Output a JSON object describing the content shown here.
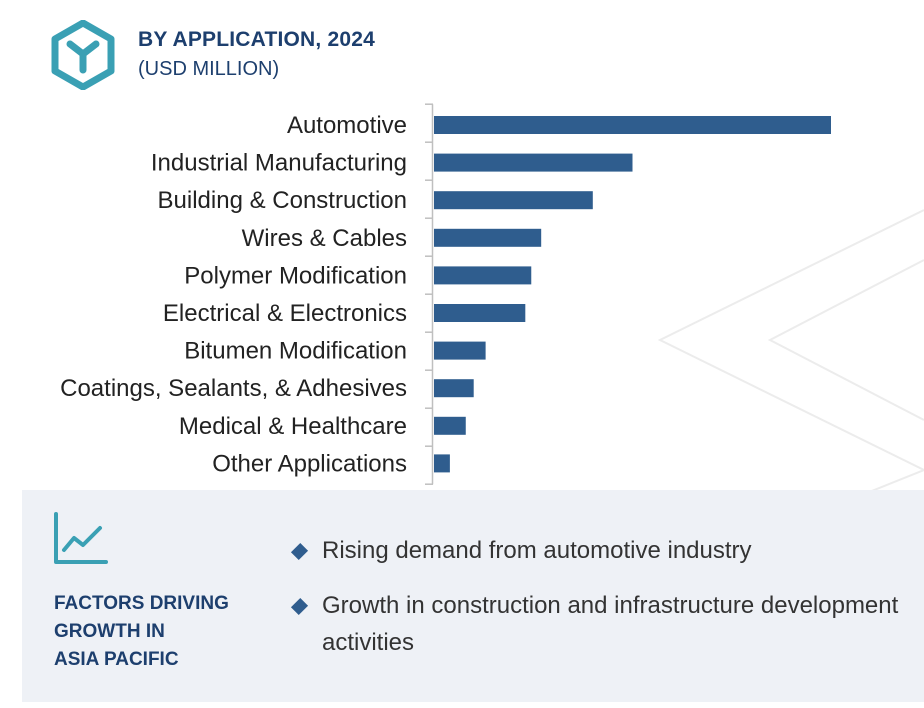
{
  "header": {
    "title": "BY APPLICATION, 2024",
    "subtitle": "(USD MILLION)",
    "logo_icon": "hexagon-y-logo-icon"
  },
  "colors": {
    "bar": "#2f5d8e",
    "title": "#1d3f6e",
    "accent": "#3aa0b4",
    "panel_bg": "#eef1f6"
  },
  "chart_data": {
    "type": "bar",
    "orientation": "horizontal",
    "title": "BY APPLICATION, 2024",
    "subtitle": "(USD MILLION)",
    "categories": [
      "Automotive",
      "Industrial Manufacturing",
      "Building & Construction",
      "Wires & Cables",
      "Polymer Modification",
      "Electrical & Electronics",
      "Bitumen Modification",
      "Coatings, Sealants, & Adhesives",
      "Medical & Healthcare",
      "Other Applications"
    ],
    "values": [
      100,
      50,
      40,
      27,
      24.5,
      23,
      13,
      10,
      8,
      4
    ],
    "value_note": "relative values; no axis values printed",
    "xlim": [
      0,
      100
    ],
    "grid": false,
    "legend": "none"
  },
  "factors": {
    "icon": "trend-chart-icon",
    "title_lines": [
      "FACTORS DRIVING",
      "GROWTH IN",
      "ASIA PACIFIC"
    ],
    "bullets": [
      "Rising demand from automotive industry",
      "Growth in construction and infrastructure development activities"
    ]
  }
}
